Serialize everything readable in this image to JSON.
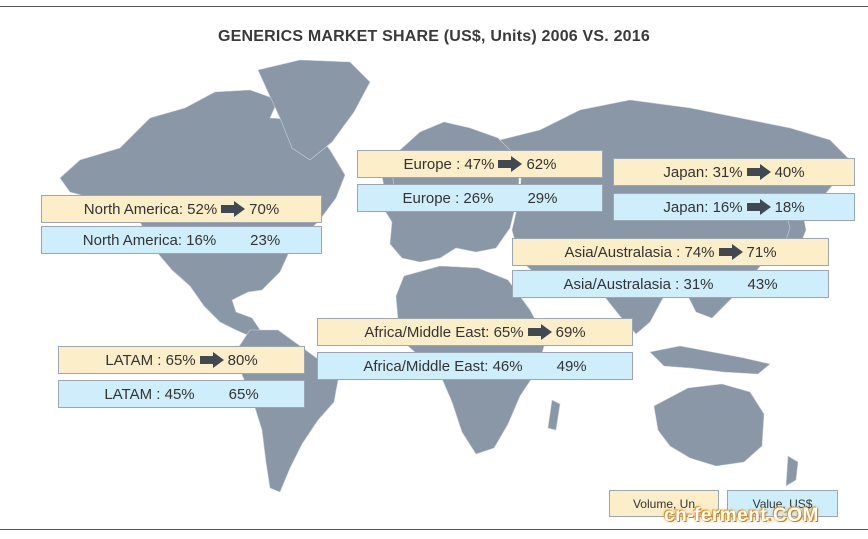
{
  "title": "GENERICS MARKET SHARE (US$, Units) 2006 VS. 2016",
  "colors": {
    "volume_fill": "#fbeec9",
    "value_fill": "#cfeefb",
    "map_land": "#8a97a6",
    "arrow": "#404852"
  },
  "regions": {
    "north_america": {
      "volume": {
        "label": "North America: 52%",
        "to": "70%"
      },
      "value": {
        "label": "North America: 16%",
        "to": "23%"
      }
    },
    "europe": {
      "volume": {
        "label": "Europe : 47%",
        "to": "62%"
      },
      "value": {
        "label": "Europe : 26%",
        "to": "29%"
      }
    },
    "japan": {
      "volume": {
        "label": "Japan: 31%",
        "to": "40%"
      },
      "value": {
        "label": "Japan: 16%",
        "to": "18%"
      }
    },
    "asia_australasia": {
      "volume": {
        "label": "Asia/Australasia : 74%",
        "to": "71%"
      },
      "value": {
        "label": "Asia/Australasia : 31%",
        "to": "43%"
      }
    },
    "africa_middle_east": {
      "volume": {
        "label": "Africa/Middle East: 65%",
        "to": "69%"
      },
      "value": {
        "label": "Africa/Middle East: 46%",
        "to": "49%"
      }
    },
    "latam": {
      "volume": {
        "label": "LATAM : 65%",
        "to": "80%"
      },
      "value": {
        "label": "LATAM : 45%",
        "to": "65%"
      }
    }
  },
  "legend": {
    "volume": "Volume, Un",
    "value": "Value, US$"
  },
  "watermark": {
    "part1": "cn-ferment",
    "dot": ".",
    "part2": "COM"
  }
}
